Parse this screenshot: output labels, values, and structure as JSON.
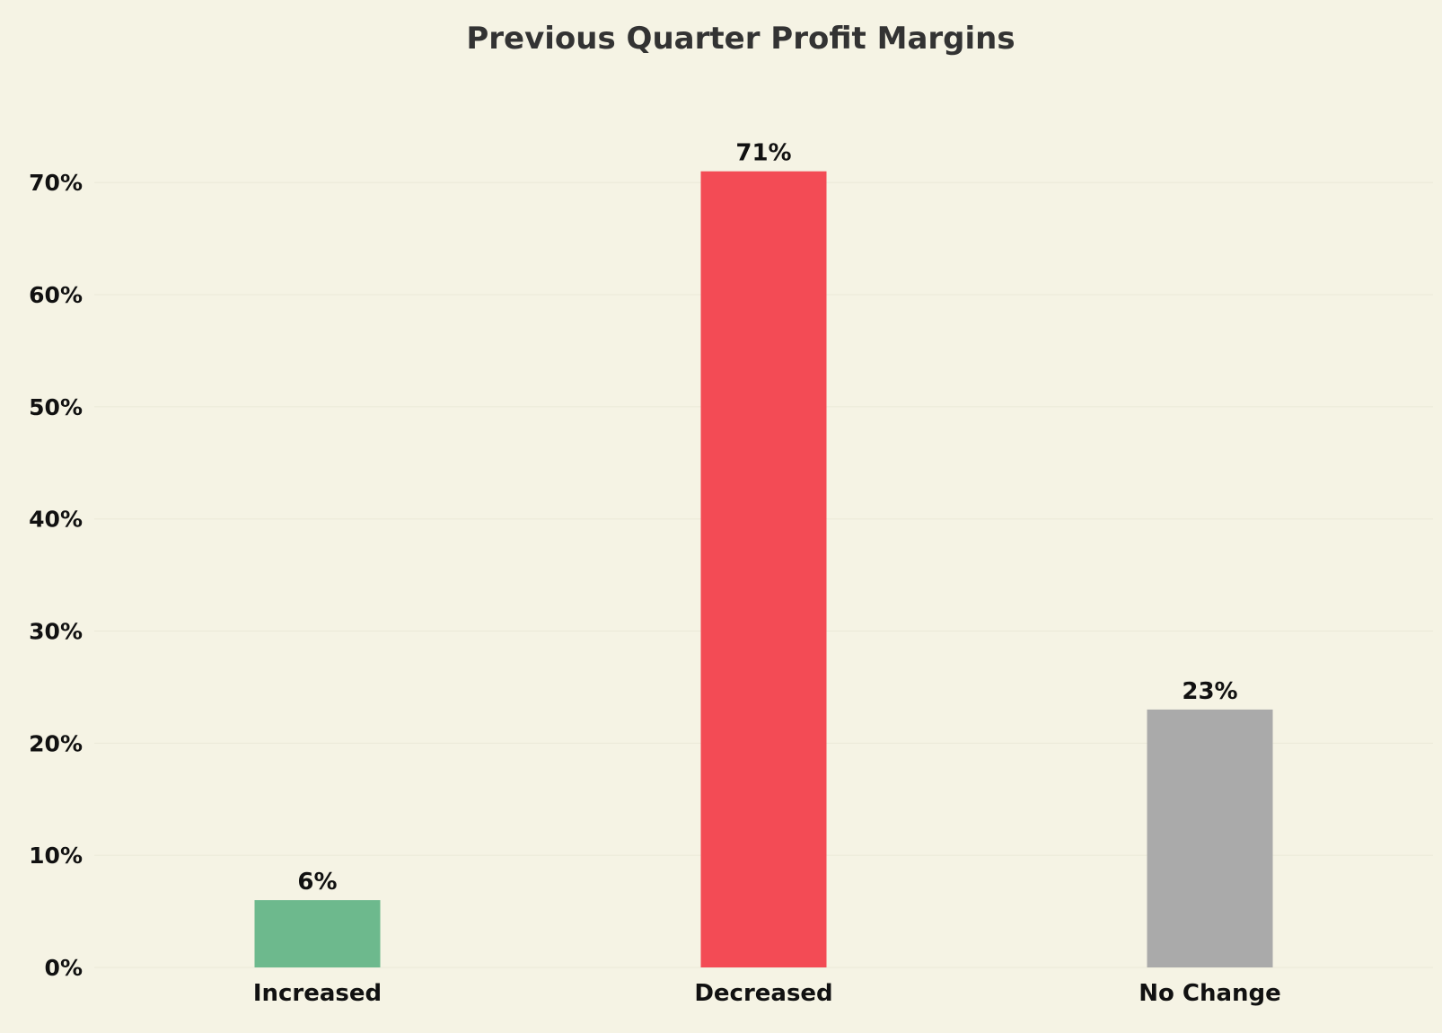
{
  "chart_data": {
    "type": "bar",
    "title": "Previous Quarter Profit Margins",
    "categories": [
      "Increased",
      "Decreased",
      "No Change"
    ],
    "values": [
      6,
      71,
      23
    ],
    "value_labels": [
      "6%",
      "71%",
      "23%"
    ],
    "colors": [
      "#6db98d",
      "#f34b55",
      "#aaaaaa"
    ],
    "xlabel": "",
    "ylabel": "",
    "ylim": [
      0,
      72.5
    ],
    "yticks": [
      0,
      10,
      20,
      30,
      40,
      50,
      60,
      70
    ],
    "ytick_labels": [
      "0%",
      "10%",
      "20%",
      "30%",
      "40%",
      "50%",
      "60%",
      "70%"
    ],
    "grid": true,
    "legend": "none"
  }
}
